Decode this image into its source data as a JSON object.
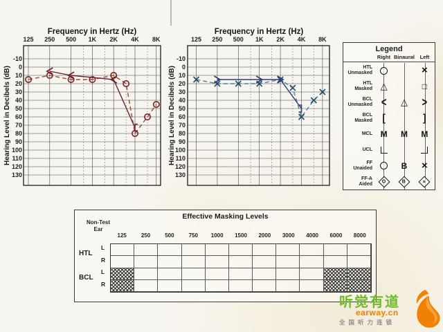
{
  "accent_colors": {
    "brand_green": "#6fb92c",
    "brand_orange": "#f18101",
    "right_ear_red": "#8a3a22",
    "left_ear_blue": "#1e4e68"
  },
  "chart_data": [
    {
      "type": "line",
      "ear": "Right",
      "title": "Frequency in Hertz (Hz)",
      "ylabel": "Hearing Level in Decibels (dB)",
      "x_ticks": [
        "125",
        "250",
        "500",
        "1K",
        "2K",
        "4K",
        "8K"
      ],
      "x_freqs": [
        125,
        250,
        500,
        1000,
        2000,
        4000,
        8000
      ],
      "dotted_freqs": [
        750,
        1500,
        3000,
        6000
      ],
      "ylim": [
        -10,
        130
      ],
      "y_step": 10,
      "series": [
        {
          "name": "HTL air conduction unmasked (circle)",
          "marker": "circle",
          "line_style": "dashed",
          "line_color": "#9c4a28",
          "marker_color": "#7c2220",
          "points": [
            [
              125,
              15
            ],
            [
              250,
              10
            ],
            [
              500,
              15
            ],
            [
              1000,
              15
            ],
            [
              2000,
              10
            ],
            [
              3000,
              20
            ],
            [
              4000,
              80
            ],
            [
              6000,
              60
            ],
            [
              8000,
              45
            ]
          ]
        },
        {
          "name": "BCL bone conduction (< unmasked, [ masked)",
          "marker": "lt",
          "line_style": "solid",
          "line_color": "#6d2130",
          "marker_color": "#6d2130",
          "points": [
            [
              250,
              5
            ],
            [
              500,
              10
            ],
            [
              2000,
              15
            ],
            [
              4000,
              73,
              "bl"
            ]
          ]
        }
      ]
    },
    {
      "type": "line",
      "ear": "Left",
      "title": "Frequency in Hertz (Hz)",
      "ylabel": "Hearing Level in Decibels (dB)",
      "x_ticks": [
        "125",
        "250",
        "500",
        "1K",
        "2K",
        "4K",
        "8K"
      ],
      "x_freqs": [
        125,
        250,
        500,
        1000,
        2000,
        4000,
        8000
      ],
      "dotted_freqs": [
        750,
        1500,
        3000,
        6000
      ],
      "ylim": [
        -10,
        130
      ],
      "y_step": 10,
      "series": [
        {
          "name": "HTL air conduction unmasked (X)",
          "marker": "x",
          "line_style": "dashed",
          "line_color": "#567b93",
          "marker_color": "#1e4e68",
          "points": [
            [
              125,
              15
            ],
            [
              250,
              20
            ],
            [
              500,
              20
            ],
            [
              1000,
              20
            ],
            [
              2000,
              15
            ],
            [
              3000,
              25
            ],
            [
              4000,
              60
            ],
            [
              6000,
              40
            ],
            [
              8000,
              30
            ]
          ]
        },
        {
          "name": "BCL bone conduction (> unmasked, ] masked)",
          "marker": "gt",
          "line_style": "solid",
          "line_color": "#2c3c78",
          "marker_color": "#2c3c78",
          "points": [
            [
              250,
              15
            ],
            [
              1000,
              15
            ],
            [
              2000,
              15
            ],
            [
              4000,
              50,
              "br"
            ]
          ]
        }
      ]
    }
  ],
  "legend": {
    "title": "Legend",
    "columns": [
      "Right",
      "Binaural",
      "Left"
    ],
    "rows": [
      {
        "label": "HTL\nUnmasked",
        "syms": [
          "circle",
          "",
          "x"
        ]
      },
      {
        "label": "HTL\nMasked",
        "syms": [
          "triangle",
          "",
          "square"
        ]
      },
      {
        "label": "BCL\nUnmasked",
        "syms": [
          "lt",
          "triangle",
          "gt"
        ]
      },
      {
        "label": "BCL\nMasked",
        "syms": [
          "bl",
          "",
          "br"
        ]
      },
      {
        "label": "MCL",
        "syms": [
          "M",
          "M",
          "M"
        ]
      },
      {
        "label": "UCL",
        "syms": [
          "ucl-l",
          "",
          "ucl-r"
        ]
      },
      {
        "label": "FF\nUnaided",
        "syms": [
          "circle",
          "B",
          "x"
        ]
      },
      {
        "label": "FF-A\nAided",
        "syms": [
          "dia-o",
          "dia-b",
          "dia-x"
        ]
      }
    ]
  },
  "masking": {
    "title": "Effective Masking Levels",
    "non_test_ear": "Non-Test\nEar",
    "frequencies": [
      "125",
      "250",
      "500",
      "750",
      "1000",
      "1500",
      "2000",
      "3000",
      "4000",
      "6000",
      "8000"
    ],
    "groups": [
      {
        "label": "HTL",
        "rows": [
          "L",
          "R"
        ]
      },
      {
        "label": "BCL",
        "rows": [
          "L",
          "R"
        ]
      }
    ],
    "hatched": {
      "group": "BCL",
      "columns": [
        "125",
        "6000",
        "8000"
      ]
    }
  },
  "watermark": {
    "brand": "听觉有道",
    "domain": "earway.cn",
    "tagline": "全国听力连锁"
  }
}
